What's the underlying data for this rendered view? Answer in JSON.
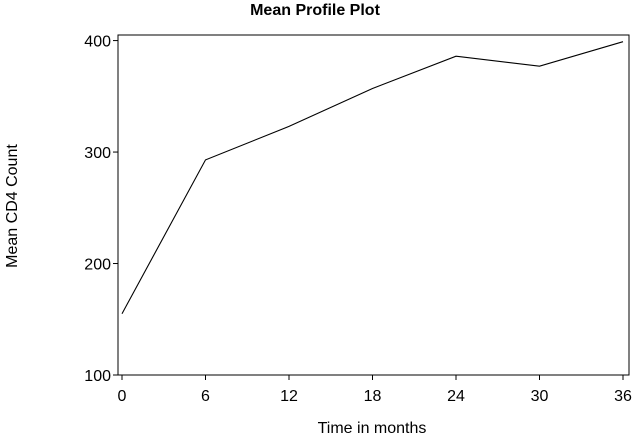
{
  "chart_data": {
    "type": "line",
    "title": "Mean Profile Plot",
    "xlabel": "Time in months",
    "ylabel": "Mean CD4 Count",
    "x": [
      0,
      6,
      12,
      18,
      24,
      30,
      36
    ],
    "series": [
      {
        "values": [
          155,
          293,
          323,
          357,
          386,
          377,
          399
        ]
      }
    ],
    "xticks": [
      "0",
      "6",
      "12",
      "18",
      "24",
      "30",
      "36"
    ],
    "yticks": [
      "100",
      "200",
      "300",
      "400"
    ],
    "xlim": [
      0,
      36
    ],
    "ylim": [
      100,
      405
    ],
    "grid": false,
    "line_color": "#000000"
  }
}
